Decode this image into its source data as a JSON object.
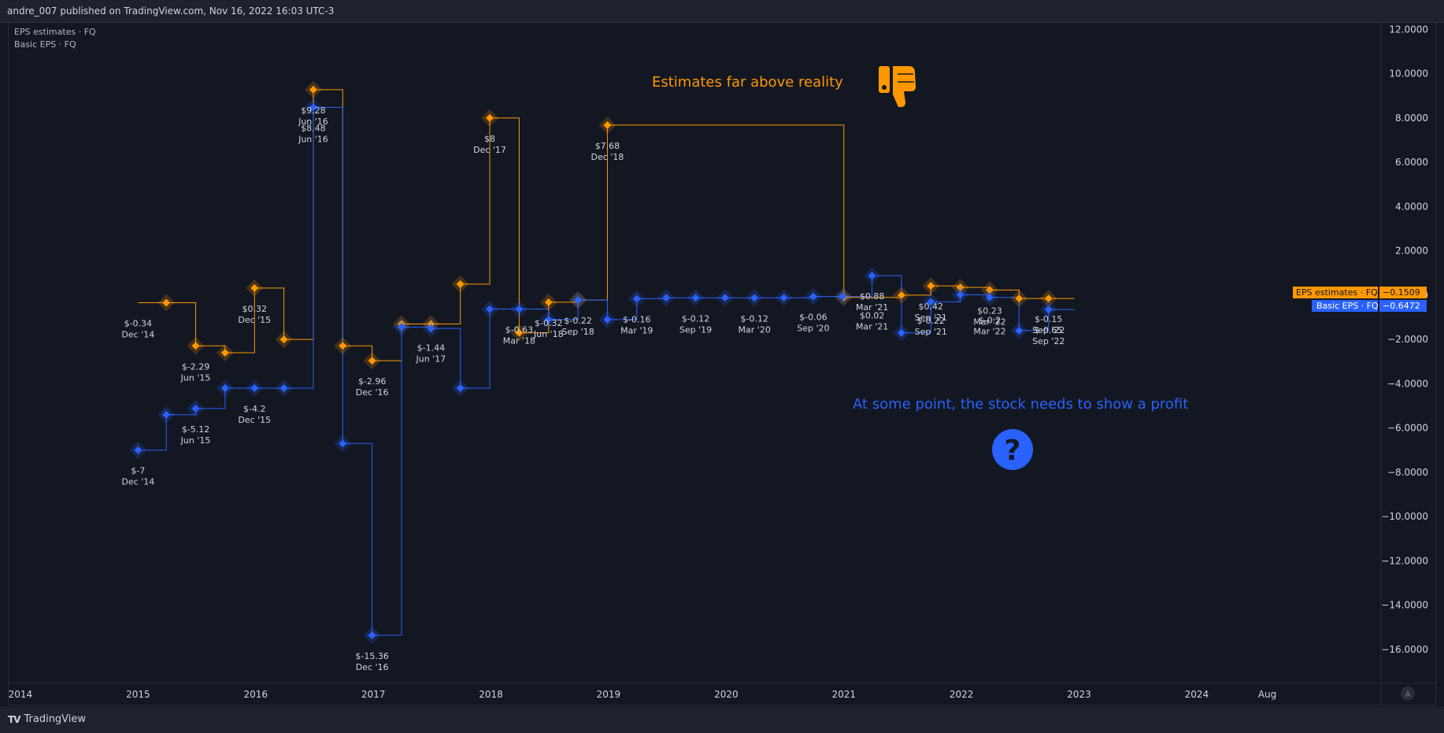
{
  "header": {
    "published": "andre_007 published on TradingView.com, Nov 16, 2022 16:03 UTC-3"
  },
  "legend": {
    "estimates": "EPS estimates · FQ",
    "basic": "Basic EPS · FQ"
  },
  "footer": {
    "brand": "TradingView"
  },
  "colors": {
    "estimates": "#ff9800",
    "basic": "#2962ff",
    "background": "#131722",
    "panel": "#1e222d",
    "axis_text": "#d1d4dc",
    "border": "#2a2e39"
  },
  "annotations": {
    "estimates_note": "Estimates far above reality",
    "profit_note": "At some point, the stock needs to show a profit",
    "estimates_icon": "thumbs-down-icon",
    "profit_icon": "question-circle-icon"
  },
  "price_tags": {
    "estimates": {
      "label": "EPS estimates · FQ",
      "value": "−0.1509"
    },
    "basic": {
      "label": "Basic EPS · FQ",
      "value": "−0.6472"
    }
  },
  "axis_scale_button": "A",
  "chart_data": {
    "type": "line",
    "ylim": [
      -17.5,
      12.3
    ],
    "xlim": [
      2013.9,
      2025.56
    ],
    "y_ticks": [
      "12.0000",
      "10.0000",
      "8.0000",
      "6.0000",
      "4.0000",
      "2.0000",
      "0.0000",
      "−2.0000",
      "−4.0000",
      "−6.0000",
      "−8.0000",
      "−10.0000",
      "−12.0000",
      "−14.0000",
      "−16.0000"
    ],
    "y_tick_values": [
      12,
      10,
      8,
      6,
      4,
      2,
      0,
      -2,
      -4,
      -6,
      -8,
      -10,
      -12,
      -14,
      -16
    ],
    "x_ticks": [
      {
        "label": "2014",
        "x": 2014.0
      },
      {
        "label": "2015",
        "x": 2015.0
      },
      {
        "label": "2016",
        "x": 2016.0
      },
      {
        "label": "2017",
        "x": 2017.0
      },
      {
        "label": "2018",
        "x": 2018.0
      },
      {
        "label": "2019",
        "x": 2019.0
      },
      {
        "label": "2020",
        "x": 2020.0
      },
      {
        "label": "2021",
        "x": 2021.0
      },
      {
        "label": "2022",
        "x": 2022.0
      },
      {
        "label": "2023",
        "x": 2023.0
      },
      {
        "label": "2024",
        "x": 2024.0
      },
      {
        "label": "Aug",
        "x": 2024.6
      }
    ],
    "series": [
      {
        "name": "EPS estimates · FQ",
        "color": "#ff9800",
        "line_start_x": 2015.0,
        "line_end_x": 2022.96,
        "points": [
          {
            "x": 2015.24,
            "y": -0.34
          },
          {
            "x": 2015.49,
            "y": -2.29
          },
          {
            "x": 2015.74,
            "y": -2.6
          },
          {
            "x": 2015.99,
            "y": 0.32
          },
          {
            "x": 2016.24,
            "y": -2.0
          },
          {
            "x": 2016.49,
            "y": 9.28
          },
          {
            "x": 2016.74,
            "y": -2.29
          },
          {
            "x": 2016.99,
            "y": -2.96
          },
          {
            "x": 2017.24,
            "y": -1.3
          },
          {
            "x": 2017.49,
            "y": -1.3
          },
          {
            "x": 2017.74,
            "y": 0.5
          },
          {
            "x": 2017.99,
            "y": 8.0
          },
          {
            "x": 2018.24,
            "y": -1.7
          },
          {
            "x": 2018.49,
            "y": -0.32
          },
          {
            "x": 2018.74,
            "y": -0.22
          },
          {
            "x": 2018.99,
            "y": 7.68
          },
          {
            "x": 2021.0,
            "y": -0.1
          },
          {
            "x": 2021.49,
            "y": 0.0
          },
          {
            "x": 2021.74,
            "y": 0.42
          },
          {
            "x": 2021.99,
            "y": 0.35
          },
          {
            "x": 2022.24,
            "y": 0.23
          },
          {
            "x": 2022.49,
            "y": -0.15
          },
          {
            "x": 2022.74,
            "y": -0.15
          }
        ]
      },
      {
        "name": "Basic EPS · FQ",
        "color": "#2962ff",
        "line_start_x": 2015.0,
        "line_end_x": 2022.96,
        "points": [
          {
            "x": 2015.0,
            "y": -7.0
          },
          {
            "x": 2015.24,
            "y": -5.4
          },
          {
            "x": 2015.49,
            "y": -5.12
          },
          {
            "x": 2015.74,
            "y": -4.2
          },
          {
            "x": 2015.99,
            "y": -4.2
          },
          {
            "x": 2016.24,
            "y": -4.2
          },
          {
            "x": 2016.49,
            "y": 8.48
          },
          {
            "x": 2016.74,
            "y": -6.7
          },
          {
            "x": 2016.99,
            "y": -15.36
          },
          {
            "x": 2017.24,
            "y": -1.44
          },
          {
            "x": 2017.49,
            "y": -1.5
          },
          {
            "x": 2017.74,
            "y": -4.2
          },
          {
            "x": 2017.99,
            "y": -0.63
          },
          {
            "x": 2018.24,
            "y": -0.63
          },
          {
            "x": 2018.49,
            "y": -1.1
          },
          {
            "x": 2018.74,
            "y": -0.22
          },
          {
            "x": 2018.99,
            "y": -1.1
          },
          {
            "x": 2019.24,
            "y": -0.16
          },
          {
            "x": 2019.49,
            "y": -0.12
          },
          {
            "x": 2019.74,
            "y": -0.12
          },
          {
            "x": 2019.99,
            "y": -0.12
          },
          {
            "x": 2020.24,
            "y": -0.12
          },
          {
            "x": 2020.49,
            "y": -0.12
          },
          {
            "x": 2020.74,
            "y": -0.06
          },
          {
            "x": 2020.99,
            "y": -0.06
          },
          {
            "x": 2021.24,
            "y": 0.88
          },
          {
            "x": 2021.49,
            "y": -1.7
          },
          {
            "x": 2021.74,
            "y": -0.3
          },
          {
            "x": 2021.99,
            "y": 0.02
          },
          {
            "x": 2022.24,
            "y": -0.1
          },
          {
            "x": 2022.49,
            "y": -1.6
          },
          {
            "x": 2022.74,
            "y": -0.65
          }
        ]
      }
    ],
    "point_labels": [
      {
        "series": 0,
        "x": 2015.0,
        "y": -0.34,
        "value": "$-0.34",
        "period": "Dec '14"
      },
      {
        "series": 1,
        "x": 2015.0,
        "y": -7.0,
        "value": "$-7",
        "period": "Dec '14"
      },
      {
        "series": 0,
        "x": 2015.49,
        "y": -2.29,
        "value": "$-2.29",
        "period": "Jun '15"
      },
      {
        "series": 1,
        "x": 2015.49,
        "y": -5.12,
        "value": "$-5.12",
        "period": "Jun '15"
      },
      {
        "series": 0,
        "x": 2015.99,
        "y": 0.32,
        "value": "$0.32",
        "period": "Dec '15"
      },
      {
        "series": 1,
        "x": 2015.99,
        "y": -4.2,
        "value": "$-4.2",
        "period": "Dec '15"
      },
      {
        "series": 0,
        "x": 2016.49,
        "y": 9.28,
        "value": "$9.28",
        "period": "Jun '16"
      },
      {
        "series": 1,
        "x": 2016.49,
        "y": 8.48,
        "value": "$8.48",
        "period": "Jun '16"
      },
      {
        "series": 0,
        "x": 2016.99,
        "y": -2.96,
        "value": "$-2.96",
        "period": "Dec '16"
      },
      {
        "series": 1,
        "x": 2016.99,
        "y": -15.36,
        "value": "$-15.36",
        "period": "Dec '16"
      },
      {
        "series": 1,
        "x": 2017.49,
        "y": -1.44,
        "value": "$-1.44",
        "period": "Jun '17"
      },
      {
        "series": 0,
        "x": 2017.99,
        "y": 8.0,
        "value": "$8",
        "period": "Dec '17"
      },
      {
        "series": 1,
        "x": 2018.24,
        "y": -0.63,
        "value": "$-0.63",
        "period": "Mar '18"
      },
      {
        "series": 0,
        "x": 2018.49,
        "y": -0.32,
        "value": "$-0.32",
        "period": "Jun '18"
      },
      {
        "series": 0,
        "x": 2018.74,
        "y": -0.22,
        "value": "$-0.22",
        "period": "Sep '18"
      },
      {
        "series": 0,
        "x": 2018.99,
        "y": 7.68,
        "value": "$7.68",
        "period": "Dec '18"
      },
      {
        "series": 1,
        "x": 2019.24,
        "y": -0.16,
        "value": "$-0.16",
        "period": "Mar '19"
      },
      {
        "series": 1,
        "x": 2019.74,
        "y": -0.12,
        "value": "$-0.12",
        "period": "Sep '19"
      },
      {
        "series": 1,
        "x": 2020.24,
        "y": -0.12,
        "value": "$-0.12",
        "period": "Mar '20"
      },
      {
        "series": 1,
        "x": 2020.74,
        "y": -0.06,
        "value": "$-0.06",
        "period": "Sep '20"
      },
      {
        "series": 1,
        "x": 2021.24,
        "y": 0.88,
        "value": "$0.88",
        "period": "Mar '21"
      },
      {
        "series": 0,
        "x": 2021.24,
        "y": 0.02,
        "value": "$0.02",
        "period": "Mar '21"
      },
      {
        "series": 0,
        "x": 2021.74,
        "y": 0.42,
        "value": "$0.42",
        "period": "Sep '21"
      },
      {
        "series": 1,
        "x": 2021.74,
        "y": -0.22,
        "value": "$-0.22",
        "period": "Sep '21"
      },
      {
        "series": 0,
        "x": 2022.24,
        "y": 0.23,
        "value": "$0.23",
        "period": "Mar '22"
      },
      {
        "series": 1,
        "x": 2022.24,
        "y": -0.2,
        "value": "$-0.2",
        "period": "Mar '22"
      },
      {
        "series": 0,
        "x": 2022.74,
        "y": -0.15,
        "value": "$-0.15",
        "period": "Sep '22"
      },
      {
        "series": 1,
        "x": 2022.74,
        "y": -0.65,
        "value": "$-0.65",
        "period": "Sep '22"
      }
    ]
  }
}
